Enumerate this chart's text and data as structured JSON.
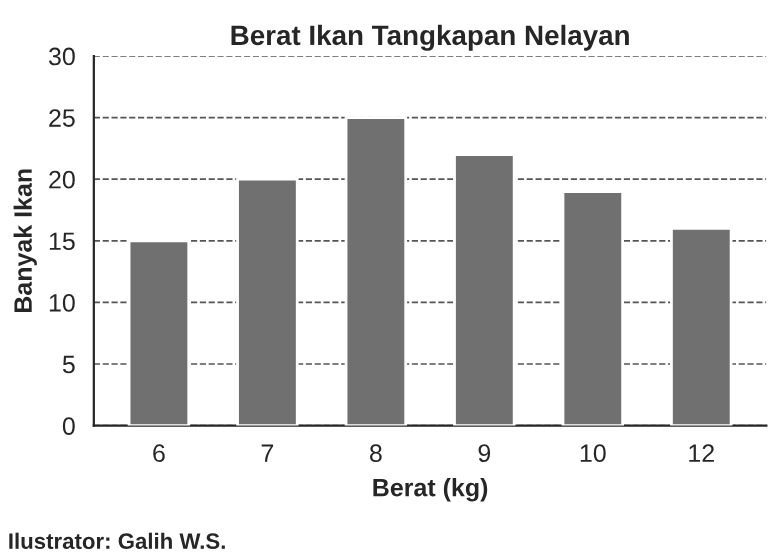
{
  "chart_data": {
    "type": "bar",
    "title": "Berat Ikan Tangkapan Nelayan",
    "xlabel": "Berat (kg)",
    "ylabel": "Banyak Ikan",
    "categories": [
      "6",
      "7",
      "8",
      "9",
      "10",
      "12"
    ],
    "values": [
      15,
      20,
      25,
      22,
      19,
      16
    ],
    "color": "#707070",
    "ylim": [
      0,
      30
    ],
    "yticks": [
      0,
      5,
      10,
      15,
      20,
      25,
      30
    ],
    "grid": "y",
    "annotations": [
      "Ilustrator: Galih W.S."
    ]
  }
}
